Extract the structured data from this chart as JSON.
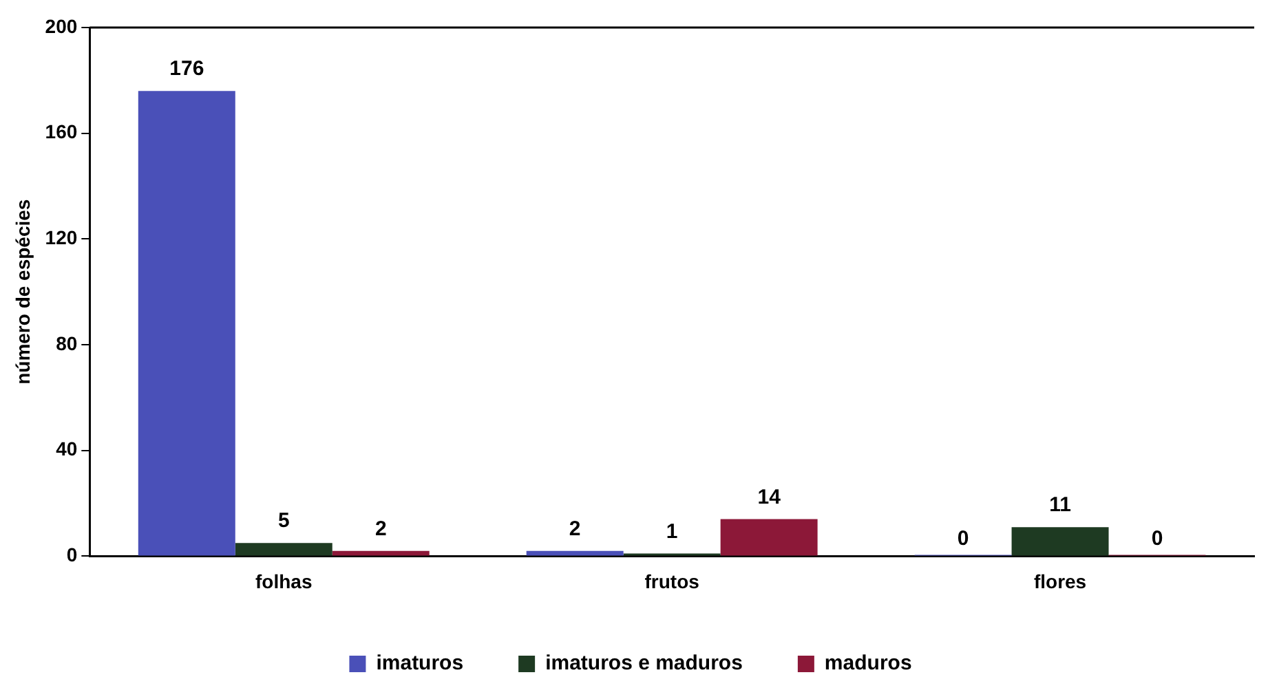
{
  "chart_data": {
    "type": "bar",
    "ylabel": "número de espécies",
    "categories": [
      "folhas",
      "frutos",
      "flores"
    ],
    "series": [
      {
        "name": "imaturos",
        "color": "#4a50b8",
        "values": [
          176,
          2,
          0
        ],
        "value_labels": [
          "176",
          "2",
          "0"
        ]
      },
      {
        "name": "imaturos e maduros",
        "color": "#1e3a22",
        "values": [
          5,
          1,
          11
        ],
        "value_labels": [
          "5",
          "1",
          "11"
        ]
      },
      {
        "name": "maduros",
        "color": "#8c1838",
        "values": [
          2,
          14,
          0
        ],
        "value_labels": [
          "2",
          "14",
          "0"
        ]
      }
    ],
    "ylim": [
      0,
      200
    ],
    "yticks": [
      0,
      40,
      80,
      120,
      160,
      200
    ],
    "grid": false,
    "legend": "bottom"
  }
}
